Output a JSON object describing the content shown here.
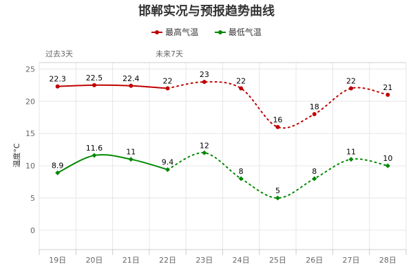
{
  "chart_data": {
    "type": "line",
    "title": "邯郸实况与预报趋势曲线",
    "ylabel": "温度°C",
    "xlabel": "",
    "ylim": [
      -3,
      26
    ],
    "yticks": [
      0,
      5,
      10,
      15,
      20,
      25
    ],
    "categories": [
      "19日",
      "20日",
      "21日",
      "22日",
      "23日",
      "24日",
      "25日",
      "26日",
      "27日",
      "28日"
    ],
    "section_labels": {
      "past": "过去3天",
      "future": "未来7天"
    },
    "grid": true,
    "legend_position": "top",
    "series": [
      {
        "name": "最高气温",
        "color": "#c00000",
        "values": [
          22.3,
          22.5,
          22.4,
          22,
          23,
          22,
          16,
          18,
          22,
          21
        ],
        "labels": [
          "22.3",
          "22.5",
          "22.4",
          "22",
          "23",
          "22",
          "16",
          "18",
          "22",
          "21"
        ]
      },
      {
        "name": "最低气温",
        "color": "#008800",
        "values": [
          8.9,
          11.6,
          11,
          9.4,
          12,
          8,
          5,
          8,
          11,
          10
        ],
        "labels": [
          "8.9",
          "11.6",
          "11",
          "9.4",
          "12",
          "8",
          "5",
          "8",
          "11",
          "10"
        ]
      }
    ],
    "observed_count": 4
  }
}
